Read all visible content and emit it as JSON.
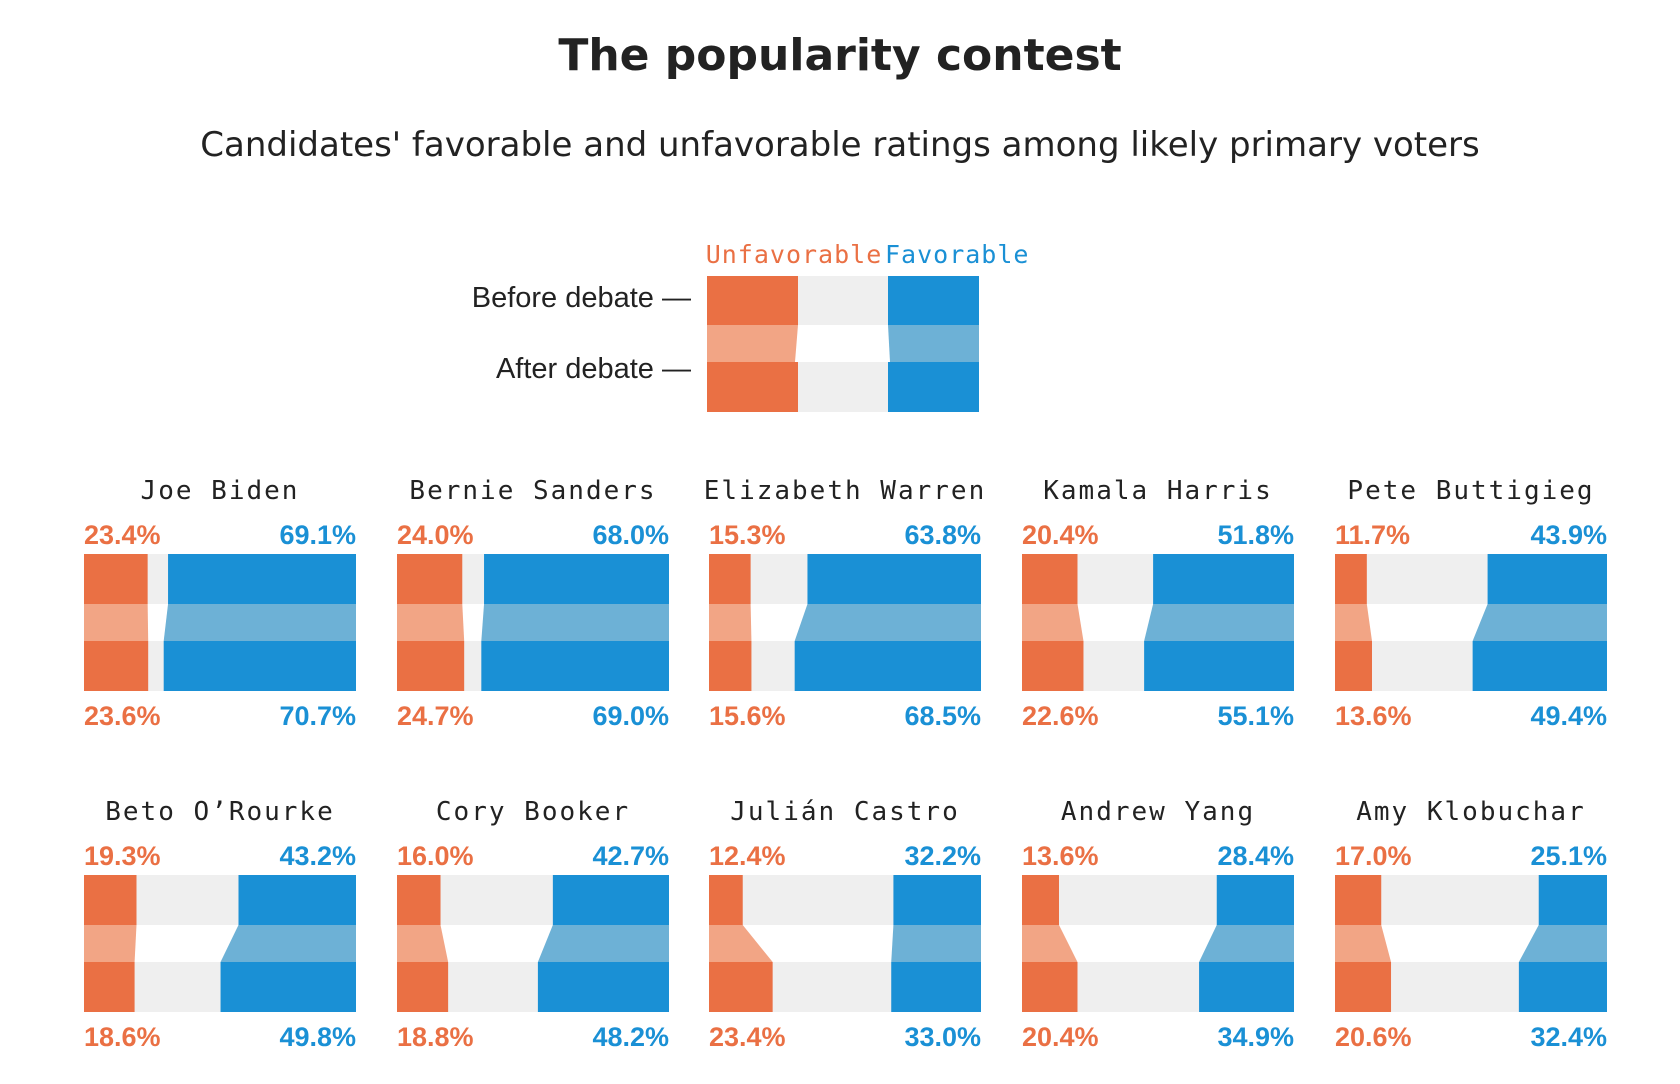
{
  "title": "The popularity contest",
  "subtitle": "Candidates' favorable and unfavorable ratings among likely primary voters",
  "legend": {
    "unfavorable_label": "Unfavorable",
    "favorable_label": "Favorable",
    "before_label": "Before debate —",
    "after_label": "After debate —"
  },
  "colors": {
    "unfavorable": "#ea7044",
    "unfavorable_light": "#f2a585",
    "favorable": "#1a90d5",
    "favorable_light": "#6db1d6",
    "neutral": "#efefef",
    "text": "#222222"
  },
  "chart_data": {
    "type": "bar",
    "title": "The popularity contest",
    "subtitle": "Candidates' favorable and unfavorable ratings among likely primary voters",
    "scale_max_percent": 100,
    "series_names": [
      "Unfavorable",
      "Favorable"
    ],
    "periods": [
      "Before debate",
      "After debate"
    ],
    "candidates": [
      {
        "name": "Joe Biden",
        "before": {
          "unfav": 23.4,
          "fav": 69.1
        },
        "after": {
          "unfav": 23.6,
          "fav": 70.7
        }
      },
      {
        "name": "Bernie Sanders",
        "before": {
          "unfav": 24.0,
          "fav": 68.0
        },
        "after": {
          "unfav": 24.7,
          "fav": 69.0
        }
      },
      {
        "name": "Elizabeth Warren",
        "before": {
          "unfav": 15.3,
          "fav": 63.8
        },
        "after": {
          "unfav": 15.6,
          "fav": 68.5
        }
      },
      {
        "name": "Kamala Harris",
        "before": {
          "unfav": 20.4,
          "fav": 51.8
        },
        "after": {
          "unfav": 22.6,
          "fav": 55.1
        }
      },
      {
        "name": "Pete Buttigieg",
        "before": {
          "unfav": 11.7,
          "fav": 43.9
        },
        "after": {
          "unfav": 13.6,
          "fav": 49.4
        }
      },
      {
        "name": "Beto O’Rourke",
        "before": {
          "unfav": 19.3,
          "fav": 43.2
        },
        "after": {
          "unfav": 18.6,
          "fav": 49.8
        }
      },
      {
        "name": "Cory Booker",
        "before": {
          "unfav": 16.0,
          "fav": 42.7
        },
        "after": {
          "unfav": 18.8,
          "fav": 48.2
        }
      },
      {
        "name": "Julián Castro",
        "before": {
          "unfav": 12.4,
          "fav": 32.2
        },
        "after": {
          "unfav": 23.4,
          "fav": 33.0
        }
      },
      {
        "name": "Andrew Yang",
        "before": {
          "unfav": 13.6,
          "fav": 28.4
        },
        "after": {
          "unfav": 20.4,
          "fav": 34.9
        }
      },
      {
        "name": "Amy Klobuchar",
        "before": {
          "unfav": 17.0,
          "fav": 25.1
        },
        "after": {
          "unfav": 20.6,
          "fav": 32.4
        }
      }
    ]
  }
}
